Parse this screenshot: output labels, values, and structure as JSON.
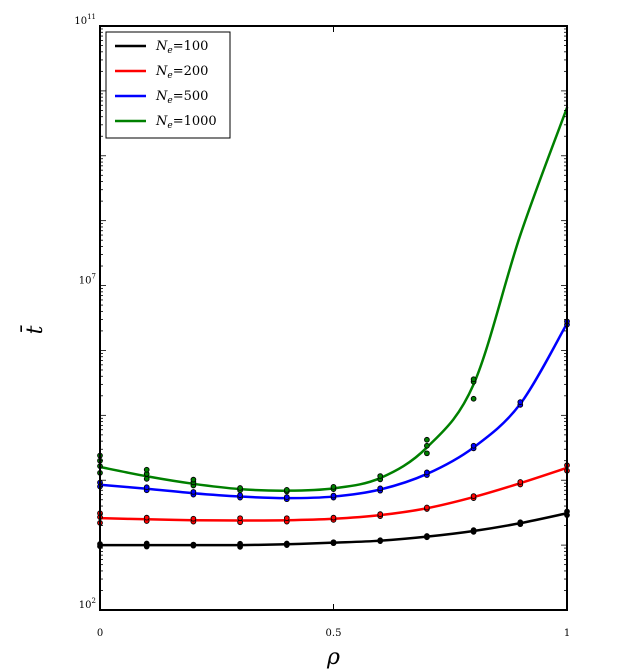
{
  "chart_data": {
    "type": "line",
    "title": "",
    "xlabel": "ρ",
    "ylabel": "t̄",
    "xlim": [
      0,
      1
    ],
    "ylim": [
      100,
      100000000000
    ],
    "yscale": "log",
    "grid": false,
    "legend_position": "top-left",
    "x_ticks": [
      0,
      0.5,
      1
    ],
    "x_tick_labels": [
      "0",
      "0.5",
      "1"
    ],
    "y_ticks": [
      {
        "value": 100,
        "base": "10",
        "exp": "2"
      },
      {
        "value": 10000000,
        "base": "10",
        "exp": "7"
      },
      {
        "value": 100000000000,
        "base": "10",
        "exp": "11"
      }
    ],
    "series": [
      {
        "name": "N_e=100",
        "label_base": "N",
        "label_sub": "e",
        "label_rest": "=100",
        "color": "#000000",
        "x": [
          0,
          0.1,
          0.2,
          0.3,
          0.4,
          0.5,
          0.6,
          0.7,
          0.8,
          0.9,
          1.0
        ],
        "y": [
          1000,
          1000,
          1000,
          1000,
          1030,
          1090,
          1170,
          1350,
          1650,
          2180,
          3100
        ],
        "scatter": [
          [
            0,
            960
          ],
          [
            0,
            1040
          ],
          [
            0.1,
            950
          ],
          [
            0.1,
            1060
          ],
          [
            0.2,
            980
          ],
          [
            0.2,
            1020
          ],
          [
            0.3,
            940
          ],
          [
            0.3,
            1050
          ],
          [
            0.4,
            1000
          ],
          [
            0.4,
            1060
          ],
          [
            0.5,
            1070
          ],
          [
            0.5,
            1110
          ],
          [
            0.6,
            1150
          ],
          [
            0.6,
            1190
          ],
          [
            0.7,
            1320
          ],
          [
            0.7,
            1380
          ],
          [
            0.8,
            1600
          ],
          [
            0.8,
            1700
          ],
          [
            0.9,
            2100
          ],
          [
            0.9,
            2250
          ],
          [
            1.0,
            2900
          ],
          [
            1.0,
            3300
          ]
        ]
      },
      {
        "name": "N_e=200",
        "label_base": "N",
        "label_sub": "e",
        "label_rest": "=200",
        "color": "#ff0000",
        "x": [
          0,
          0.1,
          0.2,
          0.3,
          0.4,
          0.5,
          0.6,
          0.7,
          0.8,
          0.9,
          1.0
        ],
        "y": [
          2600,
          2500,
          2420,
          2400,
          2420,
          2550,
          2900,
          3700,
          5500,
          9000,
          15500
        ],
        "scatter": [
          [
            0,
            2200
          ],
          [
            0,
            2700
          ],
          [
            0,
            3100
          ],
          [
            0.1,
            2350
          ],
          [
            0.1,
            2650
          ],
          [
            0.2,
            2300
          ],
          [
            0.2,
            2550
          ],
          [
            0.3,
            2250
          ],
          [
            0.3,
            2600
          ],
          [
            0.4,
            2300
          ],
          [
            0.4,
            2600
          ],
          [
            0.5,
            2450
          ],
          [
            0.5,
            2650
          ],
          [
            0.6,
            2800
          ],
          [
            0.6,
            3000
          ],
          [
            0.7,
            3600
          ],
          [
            0.7,
            3800
          ],
          [
            0.8,
            5300
          ],
          [
            0.8,
            5700
          ],
          [
            0.9,
            8600
          ],
          [
            0.9,
            9400
          ],
          [
            1.0,
            14000
          ],
          [
            1.0,
            17000
          ]
        ]
      },
      {
        "name": "N_e=500",
        "label_base": "N",
        "label_sub": "e",
        "label_rest": "=500",
        "color": "#0000ff",
        "x": [
          0,
          0.1,
          0.2,
          0.3,
          0.4,
          0.5,
          0.6,
          0.7,
          0.8,
          0.9,
          1.0
        ],
        "y": [
          8500,
          7400,
          6300,
          5600,
          5300,
          5600,
          7200,
          12500,
          32000,
          150000,
          2600000
        ],
        "scatter": [
          [
            0,
            8000
          ],
          [
            0,
            9200
          ],
          [
            0.1,
            7000
          ],
          [
            0.1,
            7800
          ],
          [
            0.2,
            6000
          ],
          [
            0.2,
            6600
          ],
          [
            0.3,
            5400
          ],
          [
            0.3,
            5900
          ],
          [
            0.4,
            5100
          ],
          [
            0.4,
            5500
          ],
          [
            0.5,
            5400
          ],
          [
            0.5,
            5800
          ],
          [
            0.6,
            6900
          ],
          [
            0.6,
            7500
          ],
          [
            0.7,
            12000
          ],
          [
            0.7,
            13200
          ],
          [
            0.8,
            31000
          ],
          [
            0.8,
            34000
          ],
          [
            0.9,
            145000
          ],
          [
            0.9,
            160000
          ],
          [
            1.0,
            2500000
          ],
          [
            1.0,
            2800000
          ]
        ]
      },
      {
        "name": "N_e=1000",
        "label_base": "N",
        "label_sub": "e",
        "label_rest": "=1000",
        "color": "#008000",
        "x": [
          0,
          0.1,
          0.2,
          0.3,
          0.4,
          0.5,
          0.6,
          0.7,
          0.8,
          0.9,
          1.0
        ],
        "y": [
          16000,
          11500,
          8800,
          7300,
          6900,
          7500,
          10800,
          32000,
          300000,
          60000000,
          5500000000
        ],
        "scatter": [
          [
            0,
            13000
          ],
          [
            0,
            16500
          ],
          [
            0,
            20000
          ],
          [
            0,
            24000
          ],
          [
            0.1,
            10500
          ],
          [
            0.1,
            12500
          ],
          [
            0.1,
            14500
          ],
          [
            0.2,
            8300
          ],
          [
            0.2,
            9300
          ],
          [
            0.2,
            10200
          ],
          [
            0.3,
            7000
          ],
          [
            0.3,
            7600
          ],
          [
            0.4,
            6700
          ],
          [
            0.4,
            7100
          ],
          [
            0.5,
            7300
          ],
          [
            0.5,
            7900
          ],
          [
            0.6,
            10300
          ],
          [
            0.6,
            11600
          ],
          [
            0.7,
            26000
          ],
          [
            0.7,
            34000
          ],
          [
            0.7,
            42000
          ],
          [
            0.8,
            180000
          ],
          [
            0.8,
            330000
          ],
          [
            0.8,
            360000
          ]
        ]
      }
    ]
  }
}
